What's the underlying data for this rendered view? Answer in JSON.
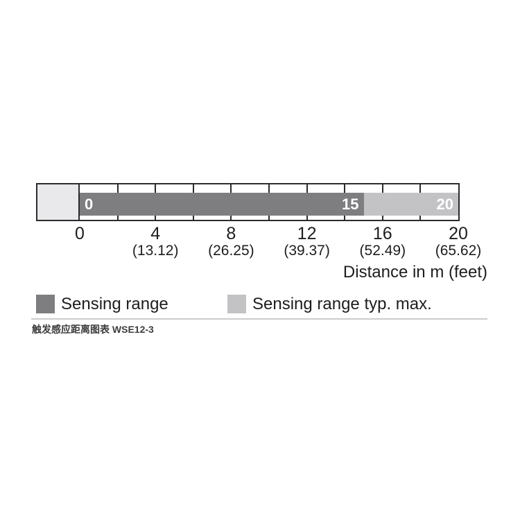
{
  "chart_data": {
    "type": "bar",
    "title": "",
    "xlabel": "Distance in m (feet)",
    "xlim": [
      0,
      20
    ],
    "minor_tick_interval_m": 2,
    "axis_ticks": [
      {
        "m": "0",
        "feet": ""
      },
      {
        "m": "4",
        "feet": "(13.12)"
      },
      {
        "m": "8",
        "feet": "(26.25)"
      },
      {
        "m": "12",
        "feet": "(39.37)"
      },
      {
        "m": "16",
        "feet": "(52.49)"
      },
      {
        "m": "20",
        "feet": "(65.62)"
      }
    ],
    "series": [
      {
        "name": "Sensing range",
        "start_m": 0,
        "end_m": 15,
        "color": "#7e7e81",
        "start_label": "0",
        "end_label": "15"
      },
      {
        "name": "Sensing range typ. max.",
        "start_m": 15,
        "end_m": 20,
        "color": "#c3c3c6",
        "end_label": "20"
      }
    ]
  },
  "legend": {
    "items": [
      {
        "label": "Sensing range",
        "color": "#7e7e81"
      },
      {
        "label": "Sensing range typ. max.",
        "color": "#c3c3c6"
      }
    ]
  },
  "caption": "触发感应距离图表 WSE12-3",
  "colors": {
    "track_border": "#2b2b2e",
    "sensor_block": "#e9e9eb",
    "bar_dark": "#7e7e81",
    "bar_light": "#c3c3c6",
    "divider": "#cccccc",
    "text": "#1d1d1f"
  }
}
